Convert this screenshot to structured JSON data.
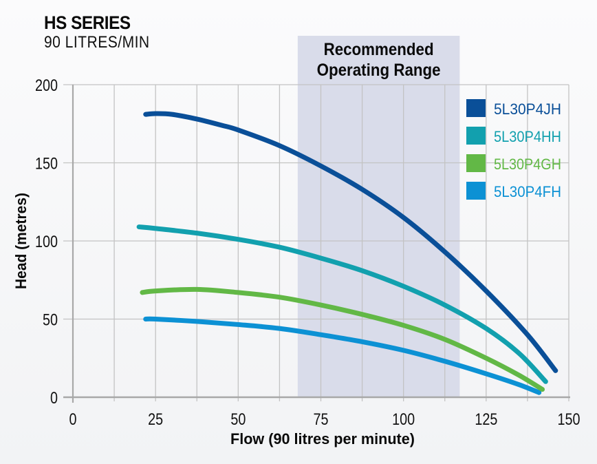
{
  "header": {
    "title": "HS SERIES",
    "subtitle": "90 LITRES/MIN"
  },
  "chart_data": {
    "type": "line",
    "title": "HS SERIES",
    "subtitle": "90 LITRES/MIN",
    "xlabel": "Flow (90 litres per minute)",
    "ylabel": "Head (metres)",
    "xlim": [
      0,
      150
    ],
    "ylim": [
      0,
      200
    ],
    "x_ticks": [
      0,
      25,
      50,
      75,
      100,
      125,
      150
    ],
    "x_tick_labels": [
      "0",
      "25",
      "50",
      "75",
      "100",
      "125",
      "150"
    ],
    "x_minor_grid_step": 12.5,
    "y_ticks": [
      0,
      50,
      100,
      150,
      200
    ],
    "y_tick_labels": [
      "0",
      "50",
      "100",
      "150",
      "200"
    ],
    "grid": true,
    "legend_position": "top-right",
    "annotation": {
      "label_line1": "Recommended",
      "label_line2": "Operating Range",
      "x_range": [
        68,
        117
      ],
      "color": "#d9dcea"
    },
    "series": [
      {
        "name": "5L30P4JH",
        "color": "#0a4f98",
        "points": [
          [
            22,
            181
          ],
          [
            25,
            181.5
          ],
          [
            30,
            181
          ],
          [
            37.5,
            178
          ],
          [
            45,
            174
          ],
          [
            50,
            171
          ],
          [
            62.5,
            161
          ],
          [
            75,
            148
          ],
          [
            87.5,
            133
          ],
          [
            100,
            115
          ],
          [
            112.5,
            93
          ],
          [
            125,
            68
          ],
          [
            137.5,
            40
          ],
          [
            146,
            17
          ]
        ]
      },
      {
        "name": "5L30P4HH",
        "color": "#12a0ae",
        "points": [
          [
            20,
            109
          ],
          [
            25,
            108
          ],
          [
            37.5,
            105
          ],
          [
            50,
            101
          ],
          [
            62.5,
            96
          ],
          [
            75,
            89
          ],
          [
            87.5,
            81
          ],
          [
            100,
            71
          ],
          [
            112.5,
            59
          ],
          [
            125,
            44
          ],
          [
            135,
            28
          ],
          [
            143,
            10
          ]
        ]
      },
      {
        "name": "5L30P4GH",
        "color": "#62b846",
        "points": [
          [
            21,
            67
          ],
          [
            25,
            68
          ],
          [
            37.5,
            69
          ],
          [
            50,
            67
          ],
          [
            62.5,
            64
          ],
          [
            75,
            59
          ],
          [
            87.5,
            53
          ],
          [
            100,
            46
          ],
          [
            112.5,
            37
          ],
          [
            125,
            25
          ],
          [
            135,
            14
          ],
          [
            142,
            5
          ]
        ]
      },
      {
        "name": "5L30P4FH",
        "color": "#0c91d4",
        "points": [
          [
            22,
            50
          ],
          [
            25,
            50
          ],
          [
            37.5,
            48.5
          ],
          [
            50,
            46.5
          ],
          [
            62.5,
            44
          ],
          [
            75,
            40
          ],
          [
            87.5,
            35.5
          ],
          [
            100,
            30
          ],
          [
            112.5,
            23
          ],
          [
            125,
            15
          ],
          [
            135,
            8
          ],
          [
            141,
            3
          ]
        ]
      }
    ]
  }
}
